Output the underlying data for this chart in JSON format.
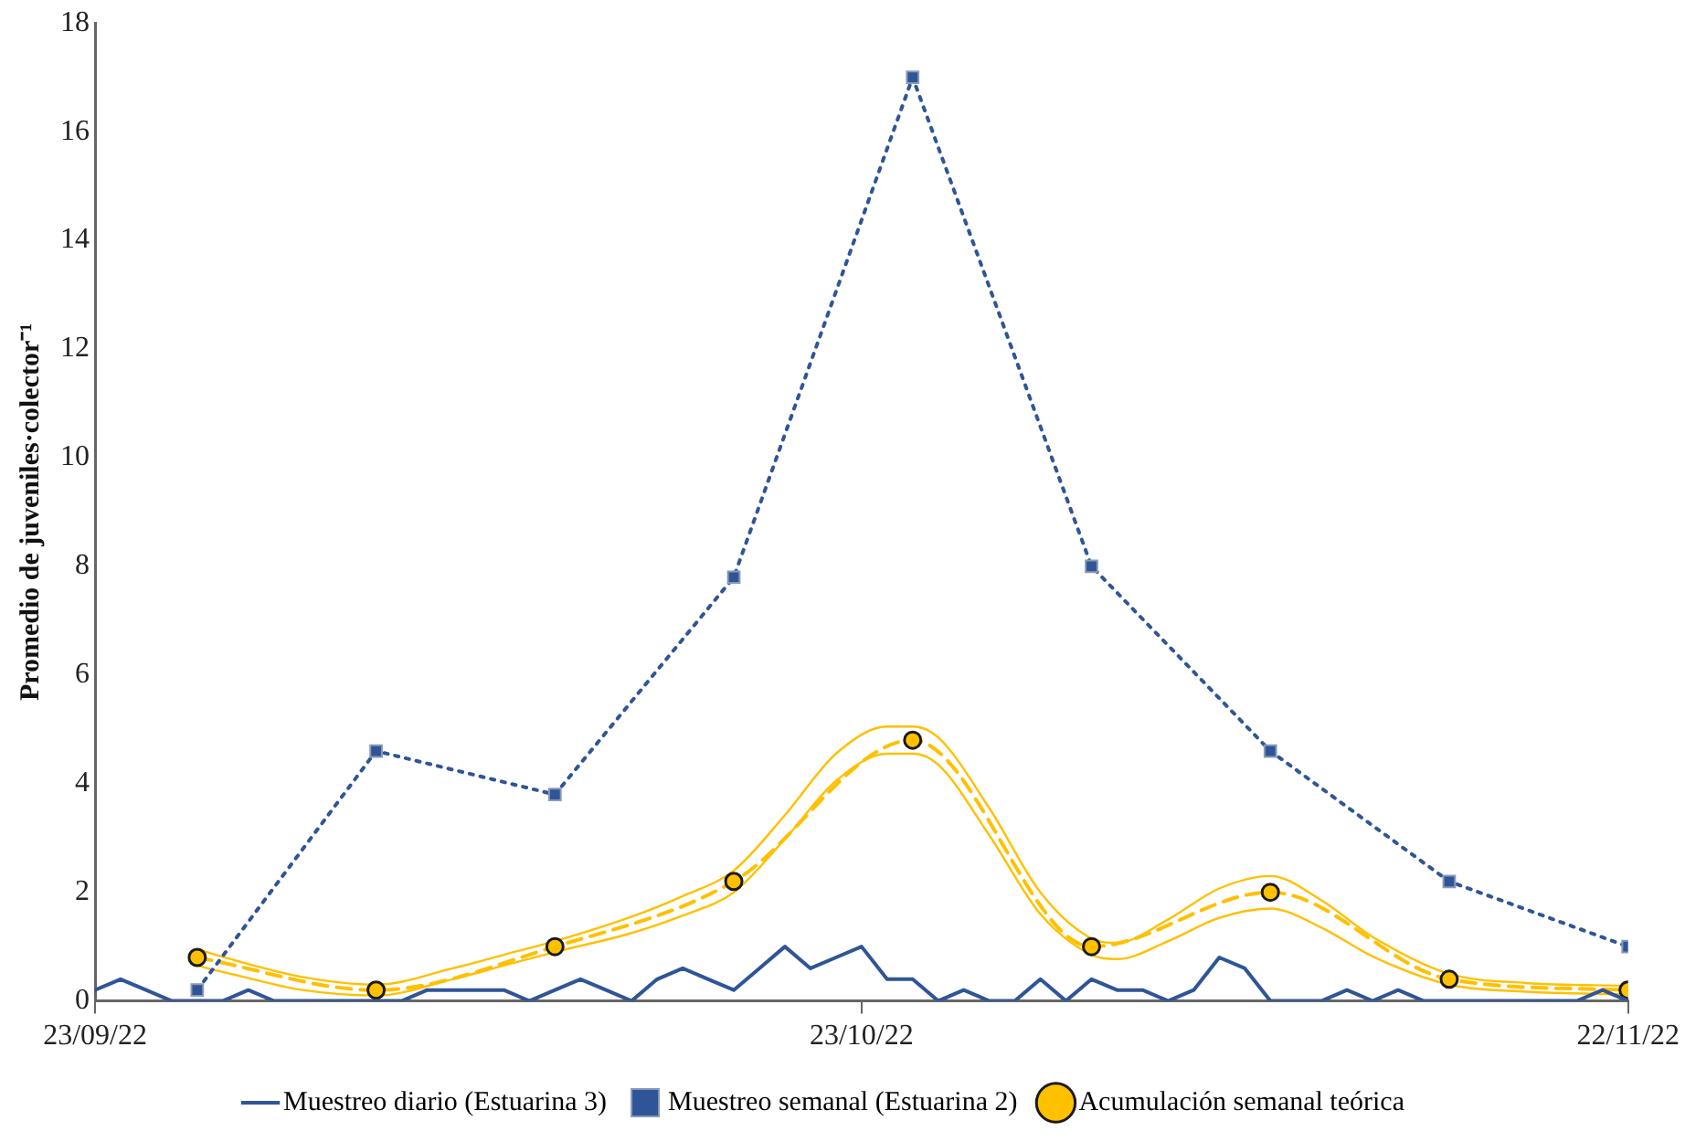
{
  "chart_data": {
    "type": "line",
    "ylabel": "Promedio de juveniles·colector⁻¹",
    "x": [
      "2022-09-23",
      "2022-09-24",
      "2022-09-25",
      "2022-09-26",
      "2022-09-27",
      "2022-09-28",
      "2022-09-29",
      "2022-09-30",
      "2022-10-01",
      "2022-10-02",
      "2022-10-03",
      "2022-10-04",
      "2022-10-05",
      "2022-10-06",
      "2022-10-07",
      "2022-10-08",
      "2022-10-09",
      "2022-10-10",
      "2022-10-11",
      "2022-10-12",
      "2022-10-13",
      "2022-10-14",
      "2022-10-15",
      "2022-10-16",
      "2022-10-17",
      "2022-10-18",
      "2022-10-19",
      "2022-10-20",
      "2022-10-21",
      "2022-10-22",
      "2022-10-23",
      "2022-10-24",
      "2022-10-25",
      "2022-10-26",
      "2022-10-27",
      "2022-10-28",
      "2022-10-29",
      "2022-10-30",
      "2022-10-31",
      "2022-11-01",
      "2022-11-02",
      "2022-11-03",
      "2022-11-04",
      "2022-11-05",
      "2022-11-06",
      "2022-11-07",
      "2022-11-08",
      "2022-11-09",
      "2022-11-10",
      "2022-11-11",
      "2022-11-12",
      "2022-11-13",
      "2022-11-14",
      "2022-11-15",
      "2022-11-16",
      "2022-11-17",
      "2022-11-18",
      "2022-11-19",
      "2022-11-20",
      "2022-11-21",
      "2022-11-22"
    ],
    "series": [
      {
        "name": "Muestreo diario (Estuarina 3)",
        "color": "#2f5597",
        "marker": "none",
        "line_style": "solid",
        "values": [
          0.2,
          0.4,
          0.2,
          0,
          0,
          0,
          0.2,
          0,
          0,
          0,
          0,
          0,
          0,
          0.2,
          0.2,
          0.2,
          0.2,
          0,
          0.2,
          0.4,
          0.2,
          0,
          0.4,
          0.6,
          0.4,
          0.2,
          0.6,
          1.0,
          0.6,
          0.8,
          1.0,
          0.4,
          0.4,
          0,
          0.2,
          0,
          0,
          0.4,
          0,
          0.4,
          0.2,
          0.2,
          0,
          0.2,
          0.8,
          0.6,
          0,
          0,
          0,
          0.2,
          0,
          0.2,
          0,
          0,
          0,
          0,
          0,
          0,
          0,
          0.2,
          0
        ]
      },
      {
        "name": "Muestreo semanal (Estuarina 2)",
        "color": "#2f5597",
        "marker": "square",
        "line_style": "dotted",
        "x": [
          "2022-09-27",
          "2022-10-04",
          "2022-10-11",
          "2022-10-18",
          "2022-10-25",
          "2022-11-01",
          "2022-11-08",
          "2022-11-15",
          "2022-11-22"
        ],
        "values": [
          0.2,
          4.6,
          3.8,
          7.8,
          17,
          8,
          4.6,
          2.2,
          1
        ]
      },
      {
        "name": "Acumulación semanal teórica",
        "color": "#ffc000",
        "marker": "circle",
        "line_style": "dashed",
        "x": [
          "2022-09-27",
          "2022-10-04",
          "2022-10-11",
          "2022-10-18",
          "2022-10-25",
          "2022-11-01",
          "2022-11-08",
          "2022-11-15",
          "2022-11-22"
        ],
        "values": [
          0.8,
          0.2,
          1.0,
          2.2,
          4.8,
          1.0,
          2.0,
          0.4,
          0.2
        ]
      },
      {
        "color": "#ffc000",
        "marker": "none",
        "line_style": "solid",
        "x": [
          "2022-09-27",
          "2022-09-29",
          "2022-10-01",
          "2022-10-04",
          "2022-10-07",
          "2022-10-09",
          "2022-10-11",
          "2022-10-14",
          "2022-10-16",
          "2022-10-18",
          "2022-10-20",
          "2022-10-22",
          "2022-10-24",
          "2022-10-25",
          "2022-10-26",
          "2022-10-28",
          "2022-10-30",
          "2022-11-01",
          "2022-11-02",
          "2022-11-04",
          "2022-11-06",
          "2022-11-08",
          "2022-11-10",
          "2022-11-12",
          "2022-11-15",
          "2022-11-18",
          "2022-11-22"
        ],
        "values": [
          0.95,
          0.68,
          0.45,
          0.3,
          0.6,
          0.85,
          1.1,
          1.55,
          1.93,
          2.4,
          3.42,
          4.55,
          5.05,
          5.05,
          4.85,
          3.55,
          2.0,
          1.15,
          1.07,
          1.5,
          2.07,
          2.3,
          1.85,
          1.18,
          0.5,
          0.33,
          0.28
        ]
      },
      {
        "color": "#ffc000",
        "marker": "none",
        "line_style": "solid",
        "x": [
          "2022-09-27",
          "2022-09-29",
          "2022-10-01",
          "2022-10-04",
          "2022-10-07",
          "2022-10-09",
          "2022-10-11",
          "2022-10-14",
          "2022-10-16",
          "2022-10-18",
          "2022-10-20",
          "2022-10-22",
          "2022-10-24",
          "2022-10-25",
          "2022-10-26",
          "2022-10-28",
          "2022-10-30",
          "2022-11-01",
          "2022-11-02",
          "2022-11-04",
          "2022-11-06",
          "2022-11-08",
          "2022-11-10",
          "2022-11-12",
          "2022-11-15",
          "2022-11-18",
          "2022-11-22"
        ],
        "values": [
          0.65,
          0.42,
          0.21,
          0.1,
          0.4,
          0.65,
          0.9,
          1.25,
          1.57,
          2.0,
          2.98,
          4.05,
          4.55,
          4.55,
          4.35,
          3.05,
          1.6,
          0.85,
          0.77,
          1.1,
          1.53,
          1.7,
          1.35,
          0.82,
          0.3,
          0.17,
          0.12
        ]
      }
    ],
    "xlim": [
      "2022-09-23",
      "2022-11-22"
    ],
    "xticks": [
      {
        "value": "2022-09-23",
        "label": "23/09/22"
      },
      {
        "value": "2022-10-23",
        "label": "23/10/22"
      },
      {
        "value": "2022-11-22",
        "label": "22/11/22"
      }
    ],
    "ylim": [
      0,
      18
    ],
    "yticks": [
      0,
      2,
      4,
      6,
      8,
      10,
      12,
      14,
      16,
      18
    ],
    "grid": false,
    "legend": "bottom"
  }
}
